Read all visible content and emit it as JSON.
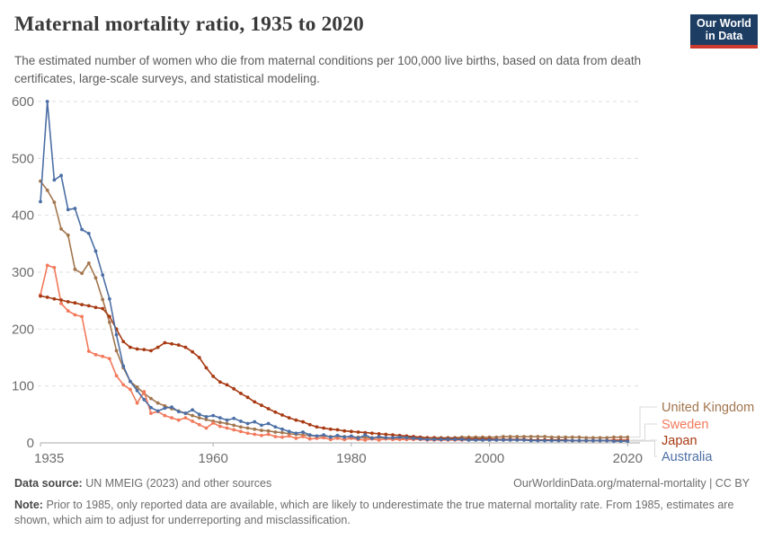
{
  "header": {
    "title": "Maternal mortality ratio, 1935 to 2020",
    "subtitle": "The estimated number of women who die from maternal conditions per 100,000 live births, based on data from death certificates, large-scale surveys, and statistical modeling.",
    "logo": {
      "line1": "Our World",
      "line2": "in Data",
      "bg_color": "#1d3d63",
      "bar_color": "#cc3a2e"
    }
  },
  "chart_data": {
    "type": "line",
    "title": "Maternal mortality ratio, 1935 to 2020",
    "xlabel": "",
    "ylabel": "",
    "xlim": [
      1935,
      2021
    ],
    "ylim": [
      0,
      600
    ],
    "x_ticks": [
      1935,
      1960,
      1980,
      2000,
      2020
    ],
    "y_ticks": [
      0,
      100,
      200,
      300,
      400,
      500,
      600
    ],
    "grid": "dashed-horizontal",
    "legend_position": "right-end-labels",
    "grid_color": "#dedede",
    "axis_color": "#a9a9a9",
    "tick_label_color": "#6d6d6d",
    "x": [
      1935,
      1936,
      1937,
      1938,
      1939,
      1940,
      1941,
      1942,
      1943,
      1944,
      1945,
      1946,
      1947,
      1948,
      1949,
      1950,
      1951,
      1952,
      1953,
      1954,
      1955,
      1956,
      1957,
      1958,
      1959,
      1960,
      1961,
      1962,
      1963,
      1964,
      1965,
      1966,
      1967,
      1968,
      1969,
      1970,
      1971,
      1972,
      1973,
      1974,
      1975,
      1976,
      1977,
      1978,
      1979,
      1980,
      1981,
      1982,
      1983,
      1984,
      1985,
      1986,
      1987,
      1988,
      1989,
      1990,
      1991,
      1992,
      1993,
      1994,
      1995,
      1996,
      1997,
      1998,
      1999,
      2000,
      2001,
      2002,
      2003,
      2004,
      2005,
      2006,
      2007,
      2008,
      2009,
      2010,
      2011,
      2012,
      2013,
      2014,
      2015,
      2016,
      2017,
      2018,
      2019,
      2020
    ],
    "series": [
      {
        "name": "United Kingdom",
        "color": "#A2764E",
        "values": [
          460,
          444,
          423,
          376,
          365,
          305,
          298,
          316,
          290,
          252,
          212,
          162,
          132,
          108,
          98,
          87,
          78,
          70,
          65,
          60,
          56,
          52,
          48,
          44,
          41,
          38,
          36,
          34,
          31,
          28,
          26,
          24,
          22,
          21,
          19,
          18,
          16,
          15,
          14,
          13,
          12,
          12,
          11,
          11,
          11,
          10,
          10,
          9,
          9,
          9,
          9,
          9,
          8,
          9,
          9,
          9,
          9,
          9,
          9,
          9,
          9,
          10,
          10,
          10,
          10,
          10,
          10,
          11,
          11,
          11,
          11,
          11,
          11,
          11,
          10,
          10,
          10,
          10,
          10,
          9,
          9,
          9,
          9,
          10,
          10,
          10
        ]
      },
      {
        "name": "Sweden",
        "color": "#F2795B",
        "values": [
          260,
          312,
          308,
          245,
          232,
          225,
          222,
          161,
          155,
          152,
          148,
          118,
          102,
          94,
          70,
          90,
          52,
          55,
          48,
          44,
          40,
          44,
          38,
          32,
          26,
          35,
          29,
          26,
          23,
          20,
          17,
          15,
          13,
          15,
          11,
          10,
          12,
          8,
          11,
          7,
          8,
          9,
          6,
          8,
          6,
          8,
          6,
          5,
          7,
          5,
          7,
          6,
          6,
          6,
          6,
          6,
          5,
          5,
          5,
          5,
          5,
          5,
          5,
          5,
          5,
          5,
          5,
          5,
          5,
          5,
          5,
          5,
          5,
          5,
          5,
          4,
          4,
          4,
          4,
          4,
          4,
          4,
          4,
          5,
          5,
          5
        ]
      },
      {
        "name": "Japan",
        "color": "#A73A13",
        "values": [
          258,
          256,
          253,
          251,
          248,
          246,
          243,
          241,
          238,
          236,
          222,
          200,
          178,
          168,
          165,
          164,
          162,
          168,
          176,
          174,
          172,
          168,
          160,
          150,
          132,
          117,
          107,
          102,
          95,
          87,
          80,
          72,
          66,
          60,
          54,
          49,
          44,
          40,
          37,
          32,
          28,
          26,
          24,
          23,
          21,
          20,
          19,
          18,
          17,
          16,
          15,
          14,
          13,
          12,
          11,
          10,
          9,
          9,
          8,
          8,
          8,
          7,
          7,
          7,
          7,
          7,
          6,
          6,
          6,
          6,
          6,
          5,
          5,
          5,
          5,
          5,
          5,
          4,
          4,
          4,
          4,
          4,
          4,
          4,
          4,
          4
        ]
      },
      {
        "name": "Australia",
        "color": "#4C6FA5",
        "values": [
          424,
          600,
          462,
          470,
          410,
          412,
          375,
          368,
          337,
          295,
          253,
          190,
          135,
          108,
          92,
          76,
          62,
          56,
          61,
          63,
          55,
          52,
          58,
          50,
          46,
          48,
          44,
          40,
          43,
          38,
          34,
          37,
          31,
          34,
          28,
          24,
          20,
          17,
          19,
          14,
          12,
          14,
          10,
          13,
          10,
          12,
          8,
          14,
          8,
          11,
          9,
          9,
          10,
          9,
          8,
          7,
          6,
          6,
          6,
          6,
          6,
          6,
          5,
          5,
          5,
          5,
          5,
          5,
          5,
          5,
          5,
          4,
          4,
          4,
          4,
          4,
          4,
          4,
          4,
          4,
          4,
          4,
          4,
          3,
          3,
          3
        ]
      }
    ]
  },
  "footer": {
    "data_source_label": "Data source:",
    "data_source_text": "UN MMEIG (2023) and other sources",
    "credit": "OurWorldinData.org/maternal-mortality | CC BY",
    "note_label": "Note:",
    "note_text": "Prior to 1985, only reported data are available, which are likely to underestimate the true maternal mortality rate. From 1985, estimates are shown, which aim to adjust for underreporting and misclassification."
  }
}
